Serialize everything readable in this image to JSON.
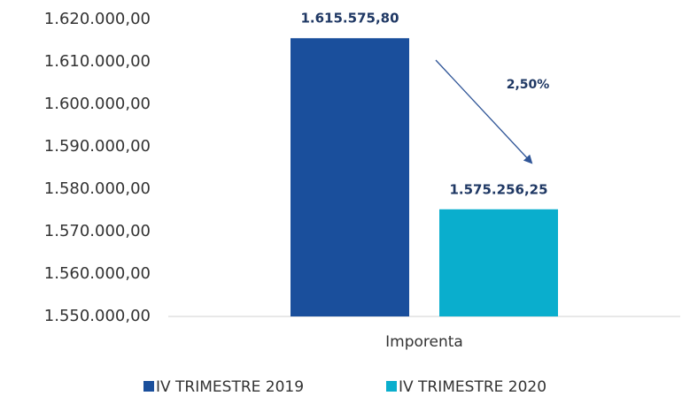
{
  "chart_data": {
    "type": "bar",
    "categories": [
      "Imporenta"
    ],
    "series": [
      {
        "name": "IV TRIMESTRE 2019",
        "color": "#1a4f9c",
        "values": [
          1615575.8
        ],
        "value_labels": [
          "1.615.575,80"
        ]
      },
      {
        "name": "IV TRIMESTRE 2020",
        "color": "#0aaecd",
        "values": [
          1575256.25
        ],
        "value_labels": [
          "1.575.256,25"
        ]
      }
    ],
    "ylim": [
      1550000,
      1620000
    ],
    "yticks": [
      {
        "value": 1550000,
        "label": "1.550.000,00"
      },
      {
        "value": 1560000,
        "label": "1.560.000,00"
      },
      {
        "value": 1570000,
        "label": "1.570.000,00"
      },
      {
        "value": 1580000,
        "label": "1.580.000,00"
      },
      {
        "value": 1590000,
        "label": "1.590.000,00"
      },
      {
        "value": 1600000,
        "label": "1.600.000,00"
      },
      {
        "value": 1610000,
        "label": "1.610.000,00"
      },
      {
        "value": 1620000,
        "label": "1.620.000,00"
      }
    ],
    "grid": false,
    "annotation": "2,50%",
    "legend": "bottom"
  }
}
